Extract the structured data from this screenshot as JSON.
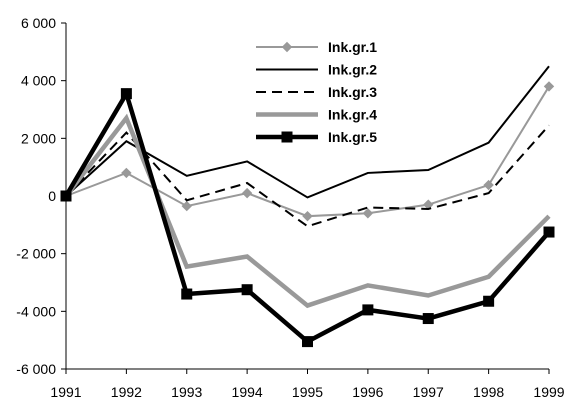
{
  "chart_data": {
    "type": "line",
    "title": "",
    "xlabel": "",
    "ylabel": "",
    "x": [
      1991,
      1992,
      1993,
      1994,
      1995,
      1996,
      1997,
      1998,
      1999
    ],
    "x_tick_labels": [
      "1991",
      "1992",
      "1993",
      "1994",
      "1995",
      "1996",
      "1997",
      "1998",
      "1999"
    ],
    "ylim": [
      -6000,
      6000
    ],
    "y_ticks": [
      6000,
      4000,
      2000,
      0,
      -2000,
      -4000,
      -6000
    ],
    "y_tick_labels": [
      "6 000",
      "4 000",
      "2 000",
      "0",
      "-2 000",
      "-4 000",
      "-6 000"
    ],
    "grid": false,
    "legend_position": "top-center",
    "series": [
      {
        "name": "Ink.gr.1",
        "values": [
          0,
          800,
          -350,
          100,
          -700,
          -600,
          -300,
          380,
          3800
        ],
        "color": "#999999",
        "style": "solid-diamond"
      },
      {
        "name": "Ink.gr.2",
        "values": [
          0,
          1900,
          700,
          1200,
          -50,
          800,
          900,
          1850,
          4500
        ],
        "color": "#000000",
        "style": "solid-thin"
      },
      {
        "name": "Ink.gr.3",
        "values": [
          0,
          2200,
          -150,
          450,
          -1050,
          -400,
          -450,
          100,
          2450
        ],
        "color": "#000000",
        "style": "dashed"
      },
      {
        "name": "Ink.gr.4",
        "values": [
          0,
          2700,
          -2450,
          -2100,
          -3800,
          -3100,
          -3450,
          -2800,
          -700
        ],
        "color": "#999999",
        "style": "solid-thick"
      },
      {
        "name": "Ink.gr.5",
        "values": [
          0,
          3550,
          -3400,
          -3250,
          -5050,
          -3950,
          -4250,
          -3650,
          -1250
        ],
        "color": "#000000",
        "style": "solid-thick-square"
      }
    ]
  }
}
